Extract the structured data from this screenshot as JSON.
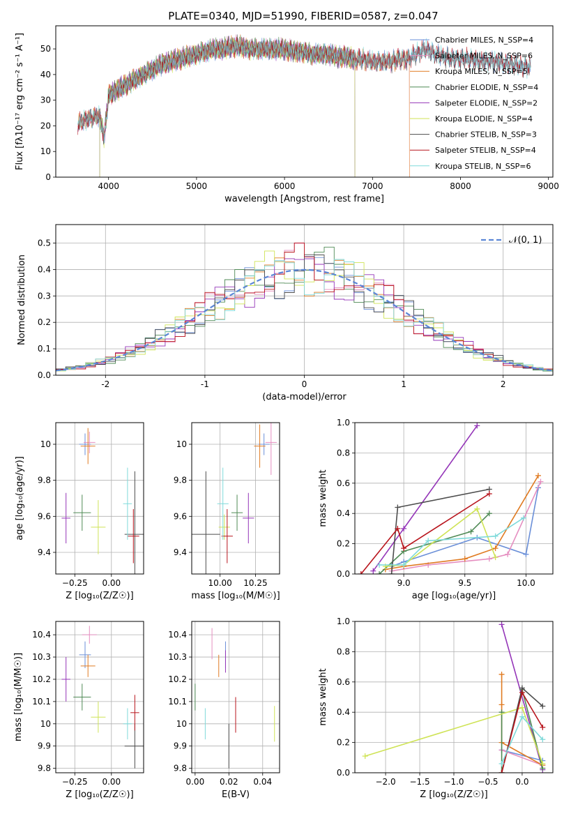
{
  "figure": {
    "title": "PLATE=0340, MJD=51990, FIBERID=0587, z=0.047"
  },
  "chart_data": [
    {
      "id": "spectrum",
      "type": "line",
      "xlabel": "wavelength [Angstrom, rest frame]",
      "ylabel": "Flux [fλ10⁻¹⁷ erg cm⁻² s⁻¹ A⁻¹]",
      "xlim": [
        3400,
        9050
      ],
      "ylim": [
        0,
        59
      ],
      "xticks": [
        4000,
        5000,
        6000,
        7000,
        8000,
        9000
      ],
      "yticks": [
        0,
        10,
        20,
        30,
        40,
        50
      ],
      "grid": false,
      "legend": "right",
      "continuum": {
        "x": [
          3650,
          3700,
          3800,
          3900,
          3950,
          4000,
          4100,
          4200,
          4300,
          4400,
          4500,
          4600,
          4700,
          4800,
          4900,
          5000,
          5100,
          5200,
          5300,
          5400,
          5500,
          5600,
          5700,
          5800,
          5900,
          6000,
          6100,
          6200,
          6300,
          6400,
          6500,
          6600,
          6700,
          6800,
          6900,
          7000,
          7100,
          7200,
          7300,
          7400,
          7500,
          7600,
          7700,
          7800,
          7900,
          8000,
          8100,
          8200,
          8300,
          8400,
          8500,
          8600,
          8700,
          8800
        ],
        "y": [
          20,
          22,
          23,
          24,
          15,
          32,
          34,
          36,
          38,
          40,
          42,
          44,
          45,
          46,
          47,
          48,
          49,
          50,
          50,
          51,
          51,
          50,
          50,
          50,
          50,
          50,
          49,
          49,
          48,
          48,
          48,
          47,
          47,
          46,
          46,
          45,
          45,
          45,
          46,
          46,
          48,
          50,
          48,
          47,
          46,
          46,
          46,
          45,
          45,
          45,
          44,
          44,
          43,
          43
        ]
      },
      "series": [
        {
          "name": "Chabrier MILES, N_SSP=4",
          "color": "#6a8fd8",
          "xrange": [
            3650,
            8800
          ]
        },
        {
          "name": "Salpeter MILES, N_SSP=6",
          "color": "#e58ec0",
          "xrange": [
            3650,
            7420
          ]
        },
        {
          "name": "Kroupa MILES, N_SSP=5",
          "color": "#e07b22",
          "xrange": [
            3650,
            7420
          ]
        },
        {
          "name": "Chabrier ELODIE, N_SSP=4",
          "color": "#4f8a55",
          "xrange": [
            3900,
            6800
          ]
        },
        {
          "name": "Salpeter ELODIE, N_SSP=2",
          "color": "#9435b8",
          "xrange": [
            3900,
            6800
          ]
        },
        {
          "name": "Kroupa ELODIE, N_SSP=4",
          "color": "#cfe356",
          "xrange": [
            3900,
            6800
          ]
        },
        {
          "name": "Chabrier STELIB, N_SSP=3",
          "color": "#4d4d4d",
          "xrange": [
            3650,
            8800
          ]
        },
        {
          "name": "Salpeter STELIB, N_SSP=4",
          "color": "#b8141c",
          "xrange": [
            3650,
            8800
          ]
        },
        {
          "name": "Kroupa STELIB, N_SSP=6",
          "color": "#7fdada",
          "xrange": [
            3650,
            8800
          ]
        }
      ]
    },
    {
      "id": "residuals",
      "type": "bar",
      "xlabel": "(data-model)/error",
      "ylabel": "Normed distribution",
      "xlim": [
        -2.5,
        2.5
      ],
      "ylim": [
        0,
        0.57
      ],
      "xticks": [
        -2,
        -1,
        0,
        1,
        2
      ],
      "yticks": [
        0.0,
        0.1,
        0.2,
        0.3,
        0.4,
        0.5
      ],
      "grid": true,
      "legend": "top-right",
      "reference": {
        "name": "𝒩(0, 1)",
        "color": "#5b86d6",
        "mu": 0,
        "sigma": 1
      },
      "bin_width": 0.1
    },
    {
      "id": "age_vs_Z",
      "type": "scatter",
      "xlabel": "Z [log₁₀(Z/Z☉)]",
      "ylabel": "age  [log₁₀(age/yr)]",
      "xlim": [
        -0.38,
        0.22
      ],
      "ylim": [
        9.28,
        10.12
      ],
      "xticks": [
        -0.25,
        0.0
      ],
      "xticklabels": [
        "−0.25",
        "0.00"
      ],
      "yticks": [
        9.4,
        9.6,
        9.8,
        10.0
      ],
      "grid": true,
      "points": [
        {
          "color": "#6a8fd8",
          "x": -0.18,
          "y": 10.0,
          "ex": 0.04,
          "ey": 0.06
        },
        {
          "color": "#e58ec0",
          "x": -0.15,
          "y": 10.01,
          "ex": 0.04,
          "ey": 0.06
        },
        {
          "color": "#e07b22",
          "x": -0.16,
          "y": 9.99,
          "ex": 0.05,
          "ey": 0.1
        },
        {
          "color": "#4f8a55",
          "x": -0.2,
          "y": 9.62,
          "ex": 0.06,
          "ey": 0.1
        },
        {
          "color": "#9435b8",
          "x": -0.31,
          "y": 9.59,
          "ex": 0.03,
          "ey": 0.14
        },
        {
          "color": "#cfe356",
          "x": -0.09,
          "y": 9.54,
          "ex": 0.05,
          "ey": 0.15
        },
        {
          "color": "#4d4d4d",
          "x": 0.16,
          "y": 9.5,
          "ex": 0.07,
          "ey": 0.35
        },
        {
          "color": "#b8141c",
          "x": 0.15,
          "y": 9.49,
          "ex": 0.04,
          "ey": 0.15
        },
        {
          "color": "#7fdada",
          "x": 0.11,
          "y": 9.67,
          "ex": 0.03,
          "ey": 0.2
        }
      ]
    },
    {
      "id": "age_vs_mass",
      "type": "scatter",
      "xlabel": "mass [log₁₀(M/M☉)]",
      "ylabel": "",
      "xlim": [
        9.8,
        10.42
      ],
      "ylim": [
        9.28,
        10.12
      ],
      "xticks": [
        10.0,
        10.25
      ],
      "xticklabels": [
        "10.00",
        "10.25"
      ],
      "yticks": [
        9.4,
        9.6,
        9.8,
        10.0
      ],
      "grid": true,
      "points": [
        {
          "color": "#6a8fd8",
          "x": 10.31,
          "y": 10.0,
          "ex": 0.04,
          "ey": 0.06
        },
        {
          "color": "#e58ec0",
          "x": 10.36,
          "y": 10.01,
          "ex": 0.04,
          "ey": 0.18
        },
        {
          "color": "#e07b22",
          "x": 10.28,
          "y": 9.99,
          "ex": 0.04,
          "ey": 0.12
        },
        {
          "color": "#4f8a55",
          "x": 10.12,
          "y": 9.62,
          "ex": 0.04,
          "ey": 0.1
        },
        {
          "color": "#9435b8",
          "x": 10.2,
          "y": 9.59,
          "ex": 0.04,
          "ey": 0.14
        },
        {
          "color": "#cfe356",
          "x": 10.03,
          "y": 9.54,
          "ex": 0.04,
          "ey": 0.07
        },
        {
          "color": "#4d4d4d",
          "x": 9.9,
          "y": 9.5,
          "ex": 0.1,
          "ey": 0.35
        },
        {
          "color": "#b8141c",
          "x": 10.05,
          "y": 9.49,
          "ex": 0.04,
          "ey": 0.15
        },
        {
          "color": "#7fdada",
          "x": 10.02,
          "y": 9.67,
          "ex": 0.04,
          "ey": 0.2
        }
      ]
    },
    {
      "id": "massweight_vs_age",
      "type": "line",
      "xlabel": "age  [log₁₀(age/yr)]",
      "ylabel": "mass weight",
      "xlim": [
        8.6,
        10.22
      ],
      "ylim": [
        0.0,
        1.0
      ],
      "xticks": [
        9.0,
        9.5,
        10.0
      ],
      "xticklabels": [
        "9.0",
        "9.5",
        "10.0"
      ],
      "yticks": [
        0.0,
        0.2,
        0.4,
        0.6,
        0.8,
        1.0
      ],
      "yticklabels": [
        "0.0",
        "0.2",
        "0.4",
        "0.6",
        "0.8",
        "1.0"
      ],
      "grid": true,
      "series": [
        {
          "color": "#9435b8",
          "x": [
            8.75,
            9.0,
            9.6
          ],
          "y": [
            0.02,
            0.3,
            0.98
          ]
        },
        {
          "color": "#6a8fd8",
          "x": [
            8.9,
            9.0,
            9.6,
            10.0,
            10.1
          ],
          "y": [
            0.05,
            0.08,
            0.24,
            0.13,
            0.57
          ]
        },
        {
          "color": "#e58ec0",
          "x": [
            8.9,
            9.2,
            9.7,
            9.85,
            10.12
          ],
          "y": [
            0.02,
            0.06,
            0.1,
            0.13,
            0.61
          ]
        },
        {
          "color": "#e07b22",
          "x": [
            8.85,
            9.0,
            9.5,
            9.75,
            10.1
          ],
          "y": [
            0.03,
            0.05,
            0.1,
            0.17,
            0.65
          ]
        },
        {
          "color": "#4f8a55",
          "x": [
            8.8,
            9.0,
            9.55,
            9.7
          ],
          "y": [
            0.0,
            0.15,
            0.28,
            0.4
          ]
        },
        {
          "color": "#cfe356",
          "x": [
            8.85,
            9.0,
            9.6,
            9.75
          ],
          "y": [
            0.05,
            0.06,
            0.43,
            0.11
          ]
        },
        {
          "color": "#4d4d4d",
          "x": [
            8.9,
            8.95,
            9.7
          ],
          "y": [
            0.0,
            0.44,
            0.56
          ]
        },
        {
          "color": "#b8141c",
          "x": [
            8.65,
            8.95,
            9.0,
            9.7
          ],
          "y": [
            0.0,
            0.3,
            0.17,
            0.53
          ]
        },
        {
          "color": "#7fdada",
          "x": [
            8.8,
            9.0,
            9.2,
            9.75,
            9.98
          ],
          "y": [
            0.06,
            0.06,
            0.22,
            0.25,
            0.37
          ]
        }
      ]
    },
    {
      "id": "mass_vs_Z",
      "type": "scatter",
      "xlabel": "Z [log₁₀(Z/Z☉)]",
      "ylabel": "mass [log₁₀(M/M☉)]",
      "xlim": [
        -0.38,
        0.22
      ],
      "ylim": [
        9.78,
        10.46
      ],
      "xticks": [
        -0.25,
        0.0
      ],
      "xticklabels": [
        "−0.25",
        "0.00"
      ],
      "yticks": [
        9.8,
        9.9,
        10.0,
        10.1,
        10.2,
        10.3,
        10.4
      ],
      "grid": true,
      "points": [
        {
          "color": "#6a8fd8",
          "x": -0.18,
          "y": 10.31,
          "ex": 0.04,
          "ey": 0.06
        },
        {
          "color": "#e58ec0",
          "x": -0.15,
          "y": 10.4,
          "ex": 0.05,
          "ey": 0.04
        },
        {
          "color": "#e07b22",
          "x": -0.16,
          "y": 10.26,
          "ex": 0.05,
          "ey": 0.05
        },
        {
          "color": "#4f8a55",
          "x": -0.2,
          "y": 10.12,
          "ex": 0.06,
          "ey": 0.06
        },
        {
          "color": "#9435b8",
          "x": -0.31,
          "y": 10.2,
          "ex": 0.03,
          "ey": 0.1
        },
        {
          "color": "#cfe356",
          "x": -0.09,
          "y": 10.03,
          "ex": 0.05,
          "ey": 0.07
        },
        {
          "color": "#4d4d4d",
          "x": 0.16,
          "y": 9.9,
          "ex": 0.07,
          "ey": 0.1
        },
        {
          "color": "#b8141c",
          "x": 0.16,
          "y": 10.05,
          "ex": 0.03,
          "ey": 0.08
        },
        {
          "color": "#7fdada",
          "x": 0.11,
          "y": 10.0,
          "ex": 0.03,
          "ey": 0.07
        }
      ]
    },
    {
      "id": "mass_vs_EBV",
      "type": "scatter",
      "xlabel": "E(B-V)",
      "ylabel": "",
      "xlim": [
        -0.002,
        0.05
      ],
      "ylim": [
        9.78,
        10.46
      ],
      "xticks": [
        0.0,
        0.02,
        0.04
      ],
      "xticklabels": [
        "0.00",
        "0.02",
        "0.04"
      ],
      "yticks": [
        9.8,
        9.9,
        10.0,
        10.1,
        10.2,
        10.3,
        10.4
      ],
      "grid": true,
      "points": [
        {
          "color": "#6a8fd8",
          "x": 0.018,
          "y": 10.31,
          "ex": 0,
          "ey": 0.06
        },
        {
          "color": "#e58ec0",
          "x": 0.01,
          "y": 10.36,
          "ex": 0,
          "ey": 0.07
        },
        {
          "color": "#e07b22",
          "x": 0.014,
          "y": 10.26,
          "ex": 0,
          "ey": 0.05
        },
        {
          "color": "#4f8a55",
          "x": 0.0,
          "y": 10.12,
          "ex": 0,
          "ey": 0.06
        },
        {
          "color": "#9435b8",
          "x": 0.018,
          "y": 10.28,
          "ex": 0,
          "ey": 0.05
        },
        {
          "color": "#cfe356",
          "x": 0.047,
          "y": 10.0,
          "ex": 0,
          "ey": 0.08
        },
        {
          "color": "#4d4d4d",
          "x": 0.02,
          "y": 9.9,
          "ex": 0,
          "ey": 0.1
        },
        {
          "color": "#b8141c",
          "x": 0.024,
          "y": 10.04,
          "ex": 0,
          "ey": 0.08
        },
        {
          "color": "#7fdada",
          "x": 0.006,
          "y": 10.0,
          "ex": 0,
          "ey": 0.07
        }
      ]
    },
    {
      "id": "massweight_vs_Z",
      "type": "line",
      "xlabel": "Z [log₁₀(Z/Z☉)]",
      "ylabel": "mass weight",
      "xlim": [
        -2.45,
        0.45
      ],
      "ylim": [
        0.0,
        1.0
      ],
      "xticks": [
        -2.0,
        -1.5,
        -1.0,
        -0.5,
        0.0
      ],
      "xticklabels": [
        "−2.0",
        "−1.5",
        "−1.0",
        "−0.5",
        "0.0"
      ],
      "yticks": [
        0.0,
        0.2,
        0.4,
        0.6,
        0.8,
        1.0
      ],
      "yticklabels": [
        "0.0",
        "0.2",
        "0.4",
        "0.6",
        "0.8",
        "1.0"
      ],
      "grid": true,
      "series": [
        {
          "color": "#9435b8",
          "x": [
            -0.3,
            0.3
          ],
          "y": [
            0.98,
            0.02
          ]
        },
        {
          "color": "#6a8fd8",
          "x": [
            -0.3,
            0.3
          ],
          "y": [
            0.15,
            0.08
          ]
        },
        {
          "color": "#e58ec0",
          "x": [
            -0.3,
            0.3
          ],
          "y": [
            0.15,
            0.05
          ]
        },
        {
          "color": "#e07b22",
          "x": [
            -0.3,
            -0.3,
            -0.3,
            0.3
          ],
          "y": [
            0.65,
            0.45,
            0.2,
            0.05
          ]
        },
        {
          "color": "#4f8a55",
          "x": [
            -0.3,
            -0.3,
            0.0,
            0.3
          ],
          "y": [
            0.4,
            0.0,
            0.55,
            0.03
          ]
        },
        {
          "color": "#cfe356",
          "x": [
            -2.3,
            0.0,
            0.3
          ],
          "y": [
            0.11,
            0.43,
            0.06
          ]
        },
        {
          "color": "#4d4d4d",
          "x": [
            -0.3,
            0.0,
            0.3
          ],
          "y": [
            0.0,
            0.56,
            0.44
          ]
        },
        {
          "color": "#b8141c",
          "x": [
            -0.3,
            0.0,
            0.3
          ],
          "y": [
            0.0,
            0.53,
            0.3
          ]
        },
        {
          "color": "#7fdada",
          "x": [
            -0.3,
            0.0,
            0.3
          ],
          "y": [
            0.06,
            0.37,
            0.22
          ]
        }
      ]
    }
  ]
}
